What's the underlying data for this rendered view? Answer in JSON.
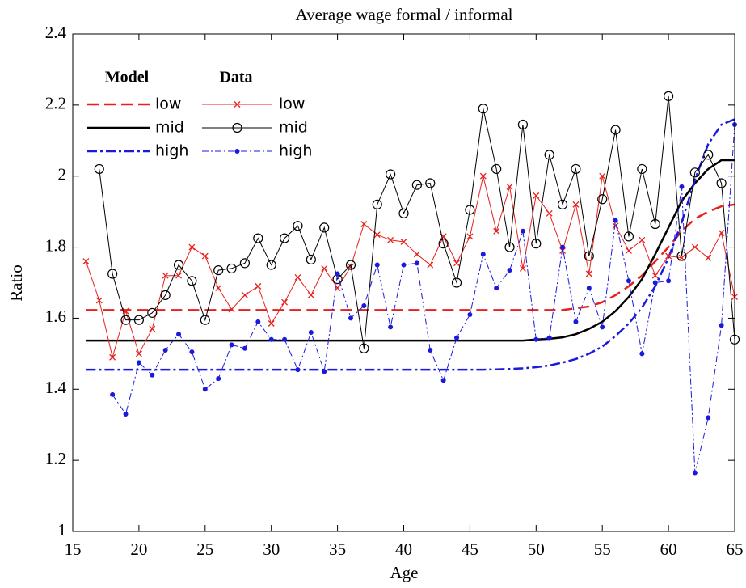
{
  "chart_data": {
    "type": "line",
    "title": "Average wage formal / informal",
    "xlabel": "Age",
    "ylabel": "Ratio",
    "xlim": [
      15,
      65
    ],
    "xticks": [
      15,
      20,
      25,
      30,
      35,
      40,
      45,
      50,
      55,
      60,
      65
    ],
    "ylim": [
      1,
      2.4
    ],
    "yticks": [
      1,
      1.2,
      1.4,
      1.6,
      1.8,
      2,
      2.2,
      2.4
    ],
    "legend_columns": [
      "Model",
      "Data"
    ],
    "legend": "upper left",
    "x": [
      16,
      17,
      18,
      19,
      20,
      21,
      22,
      23,
      24,
      25,
      26,
      27,
      28,
      29,
      30,
      31,
      32,
      33,
      34,
      35,
      36,
      37,
      38,
      39,
      40,
      41,
      42,
      43,
      44,
      45,
      46,
      47,
      48,
      49,
      50,
      51,
      52,
      53,
      54,
      55,
      56,
      57,
      58,
      59,
      60,
      61,
      62,
      63,
      64,
      65
    ],
    "series": [
      {
        "name": "low",
        "group": "Model",
        "color": "#e8201c",
        "dash": "14,7",
        "width": 2.5,
        "marker": "none",
        "values": [
          1.623,
          1.623,
          1.623,
          1.623,
          1.623,
          1.623,
          1.623,
          1.623,
          1.623,
          1.623,
          1.623,
          1.623,
          1.623,
          1.623,
          1.623,
          1.623,
          1.623,
          1.623,
          1.623,
          1.623,
          1.623,
          1.623,
          1.623,
          1.623,
          1.623,
          1.623,
          1.623,
          1.623,
          1.623,
          1.623,
          1.623,
          1.623,
          1.623,
          1.623,
          1.623,
          1.623,
          1.623,
          1.628,
          1.633,
          1.645,
          1.665,
          1.69,
          1.72,
          1.76,
          1.8,
          1.845,
          1.88,
          1.9,
          1.915,
          1.92
        ]
      },
      {
        "name": "mid",
        "group": "Model",
        "color": "#000000",
        "dash": "none",
        "width": 2.5,
        "marker": "none",
        "values": [
          1.537,
          1.537,
          1.537,
          1.537,
          1.537,
          1.537,
          1.537,
          1.537,
          1.537,
          1.537,
          1.537,
          1.537,
          1.537,
          1.537,
          1.537,
          1.537,
          1.537,
          1.537,
          1.537,
          1.537,
          1.537,
          1.537,
          1.537,
          1.537,
          1.537,
          1.537,
          1.537,
          1.537,
          1.537,
          1.537,
          1.537,
          1.537,
          1.537,
          1.537,
          1.54,
          1.542,
          1.546,
          1.555,
          1.57,
          1.59,
          1.62,
          1.66,
          1.71,
          1.78,
          1.855,
          1.93,
          1.98,
          2.02,
          2.045,
          2.045
        ]
      },
      {
        "name": "high",
        "group": "Model",
        "color": "#1a1adc",
        "dash": "12,4,3,4",
        "width": 2.5,
        "marker": "none",
        "values": [
          1.455,
          1.455,
          1.455,
          1.455,
          1.455,
          1.455,
          1.455,
          1.455,
          1.455,
          1.455,
          1.455,
          1.455,
          1.455,
          1.455,
          1.455,
          1.455,
          1.455,
          1.455,
          1.455,
          1.455,
          1.455,
          1.455,
          1.455,
          1.455,
          1.455,
          1.455,
          1.455,
          1.455,
          1.455,
          1.455,
          1.455,
          1.456,
          1.457,
          1.459,
          1.462,
          1.467,
          1.475,
          1.485,
          1.5,
          1.52,
          1.55,
          1.585,
          1.63,
          1.69,
          1.77,
          1.87,
          1.99,
          2.09,
          2.145,
          2.16
        ]
      },
      {
        "name": "low",
        "group": "Data",
        "color": "#e8201c",
        "dash": "none",
        "width": 1,
        "marker": "x",
        "values": [
          1.76,
          1.65,
          1.49,
          1.62,
          1.5,
          1.57,
          1.72,
          1.72,
          1.8,
          1.775,
          1.685,
          1.625,
          1.665,
          1.69,
          1.585,
          1.645,
          1.715,
          1.665,
          1.74,
          1.685,
          1.745,
          1.865,
          1.835,
          1.82,
          1.815,
          1.78,
          1.75,
          1.83,
          1.755,
          1.83,
          2.0,
          1.845,
          1.97,
          1.74,
          1.945,
          1.895,
          1.79,
          1.92,
          1.725,
          2.0,
          1.86,
          1.79,
          1.82,
          1.72,
          1.775,
          1.77,
          1.8,
          1.77,
          1.84,
          1.66
        ]
      },
      {
        "name": "mid",
        "group": "Data",
        "color": "#000000",
        "dash": "none",
        "width": 1,
        "marker": "o",
        "values": [
          null,
          2.02,
          1.725,
          1.595,
          1.595,
          1.615,
          1.665,
          1.75,
          1.705,
          1.595,
          1.735,
          1.74,
          1.755,
          1.825,
          1.75,
          1.825,
          1.86,
          1.765,
          1.855,
          1.71,
          1.75,
          1.515,
          1.92,
          2.005,
          1.895,
          1.975,
          1.98,
          1.81,
          1.7,
          1.905,
          2.19,
          2.02,
          1.8,
          2.145,
          1.81,
          2.06,
          1.92,
          2.02,
          1.775,
          1.935,
          2.13,
          1.83,
          2.02,
          1.865,
          2.225,
          1.775,
          2.01,
          2.06,
          1.98,
          1.54
        ]
      },
      {
        "name": "high",
        "group": "Data",
        "color": "#1a1adc",
        "dash": "8,3,2,3",
        "width": 1,
        "marker": "dot",
        "values": [
          null,
          null,
          1.385,
          1.33,
          1.475,
          1.44,
          1.51,
          1.555,
          1.505,
          1.4,
          1.43,
          1.525,
          1.515,
          1.59,
          1.54,
          1.54,
          1.455,
          1.56,
          1.45,
          1.725,
          1.6,
          1.635,
          1.75,
          1.575,
          1.75,
          1.755,
          1.51,
          1.425,
          1.545,
          1.61,
          1.78,
          1.685,
          1.735,
          1.845,
          1.54,
          1.545,
          1.8,
          1.59,
          1.685,
          1.575,
          1.875,
          1.705,
          1.5,
          1.7,
          1.705,
          1.97,
          1.165,
          1.32,
          1.58,
          2.145
        ]
      }
    ]
  }
}
